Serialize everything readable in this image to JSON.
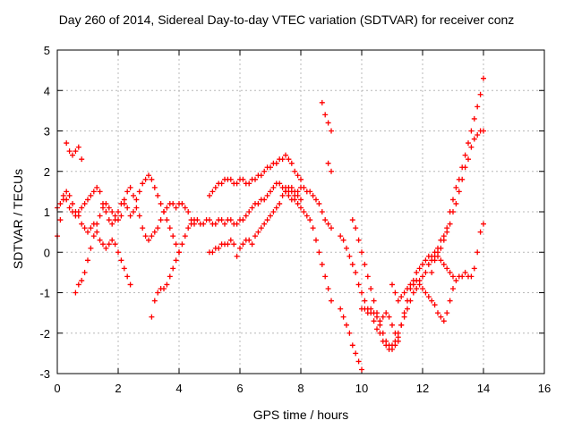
{
  "chart_data": {
    "type": "scatter",
    "title": "Day 260 of 2014, Sidereal Day-to-day VTEC variation (SDTVAR) for receiver conz",
    "xlabel": "GPS time / hours",
    "ylabel": "SDTVAR / TECUs",
    "xlim": [
      0,
      16
    ],
    "ylim": [
      -3,
      5
    ],
    "xticks": [
      0,
      2,
      4,
      6,
      8,
      10,
      12,
      14,
      16
    ],
    "yticks": [
      -3,
      -2,
      -1,
      0,
      1,
      2,
      3,
      4,
      5
    ],
    "grid": true,
    "marker": "plus",
    "color": "#ff0000",
    "series": [
      {
        "x": [
          0.0,
          0.1,
          0.2,
          0.3,
          0.4,
          0.5,
          0.6,
          0.7,
          0.8,
          0.9,
          1.0,
          1.1,
          1.2,
          1.3,
          1.4,
          1.5,
          1.6,
          1.7,
          1.8,
          1.9,
          2.0,
          2.1,
          2.2,
          2.3,
          2.4
        ],
        "y": [
          0.4,
          0.8,
          1.3,
          1.5,
          1.4,
          1.2,
          1.0,
          0.9,
          0.7,
          0.6,
          0.5,
          0.6,
          0.7,
          0.5,
          0.3,
          0.2,
          0.1,
          0.2,
          0.3,
          0.2,
          0.0,
          -0.2,
          -0.4,
          -0.6,
          -0.8
        ]
      },
      {
        "x": [
          0.3,
          0.4,
          0.5,
          0.6,
          0.7,
          0.8
        ],
        "y": [
          2.7,
          2.5,
          2.4,
          2.5,
          2.6,
          2.3
        ]
      },
      {
        "x": [
          0.6,
          0.7,
          0.8,
          0.9,
          1.0,
          1.1,
          1.2,
          1.3,
          1.4,
          1.5,
          1.6,
          1.7,
          1.8,
          1.9,
          2.0,
          2.1,
          2.2,
          2.3,
          2.4,
          2.5,
          2.6,
          2.7,
          2.8,
          2.9,
          3.0,
          3.1,
          3.2,
          3.3,
          3.4,
          3.5,
          3.6,
          3.7,
          3.8,
          3.9,
          4.0,
          4.1,
          4.2,
          4.3,
          4.4,
          4.5
        ],
        "y": [
          -1.0,
          -0.8,
          -0.7,
          -0.5,
          -0.2,
          0.1,
          0.4,
          0.7,
          0.9,
          1.1,
          1.2,
          1.1,
          1.0,
          0.9,
          0.8,
          0.9,
          1.2,
          1.5,
          1.6,
          1.4,
          1.1,
          0.9,
          0.6,
          0.4,
          0.3,
          0.4,
          0.5,
          0.6,
          0.8,
          1.0,
          1.1,
          1.2,
          1.2,
          1.1,
          1.2,
          1.2,
          1.1,
          1.0,
          0.8,
          0.7
        ]
      },
      {
        "x": [
          0.0,
          0.1,
          0.2,
          0.3,
          0.4,
          0.5,
          0.6,
          0.7,
          0.8,
          0.9,
          1.0,
          1.1,
          1.2,
          1.3,
          1.4,
          1.5,
          1.6,
          1.7,
          1.8,
          1.9,
          2.0,
          2.1,
          2.2,
          2.3,
          2.4,
          2.5,
          2.6,
          2.7,
          2.8,
          2.9,
          3.0,
          3.1,
          3.2,
          3.3,
          3.4,
          3.5,
          3.6,
          3.7,
          3.8,
          3.9,
          4.0
        ],
        "y": [
          1.1,
          1.2,
          1.4,
          1.3,
          1.1,
          1.0,
          0.9,
          1.0,
          1.1,
          1.2,
          1.3,
          1.4,
          1.5,
          1.6,
          1.5,
          1.2,
          1.0,
          0.8,
          0.7,
          0.8,
          1.0,
          1.2,
          1.3,
          1.1,
          0.9,
          1.0,
          1.3,
          1.5,
          1.7,
          1.8,
          1.9,
          1.8,
          1.6,
          1.4,
          1.2,
          1.0,
          0.8,
          0.6,
          0.4,
          0.2,
          0.0
        ]
      },
      {
        "x": [
          3.1,
          3.2,
          3.3,
          3.4,
          3.5,
          3.6,
          3.7,
          3.8,
          3.9,
          4.0,
          4.1,
          4.2,
          4.3,
          4.4,
          4.5,
          4.6,
          4.7,
          4.8,
          4.9,
          5.0,
          5.1,
          5.2,
          5.3,
          5.4,
          5.5,
          5.6,
          5.7,
          5.8,
          5.9,
          6.0,
          6.1,
          6.2,
          6.3,
          6.4,
          6.5,
          6.6,
          6.7,
          6.8,
          6.9,
          7.0,
          7.1,
          7.2,
          7.3,
          7.4,
          7.5,
          7.6,
          7.7,
          7.8,
          7.9,
          8.0
        ],
        "y": [
          -1.6,
          -1.2,
          -1.0,
          -0.9,
          -0.9,
          -0.8,
          -0.6,
          -0.4,
          -0.2,
          0.0,
          0.2,
          0.4,
          0.6,
          0.7,
          0.8,
          0.8,
          0.7,
          0.7,
          0.8,
          0.8,
          0.7,
          0.7,
          0.8,
          0.8,
          0.7,
          0.8,
          0.8,
          0.7,
          0.7,
          0.8,
          0.8,
          0.9,
          1.0,
          1.1,
          1.2,
          1.2,
          1.3,
          1.3,
          1.4,
          1.5,
          1.6,
          1.7,
          1.7,
          1.6,
          1.6,
          1.5,
          1.5,
          1.4,
          1.4,
          1.3
        ]
      },
      {
        "x": [
          5.0,
          5.1,
          5.2,
          5.3,
          5.4,
          5.5,
          5.6,
          5.7,
          5.8,
          5.9,
          6.0,
          6.1,
          6.2,
          6.3,
          6.4,
          6.5,
          6.6,
          6.7,
          6.8,
          6.9,
          7.0,
          7.1,
          7.2,
          7.3,
          7.4,
          7.5,
          7.6,
          7.7,
          7.8,
          7.9,
          8.0
        ],
        "y": [
          1.4,
          1.5,
          1.6,
          1.7,
          1.7,
          1.8,
          1.8,
          1.8,
          1.7,
          1.7,
          1.8,
          1.8,
          1.7,
          1.7,
          1.8,
          1.8,
          1.9,
          1.9,
          2.0,
          2.1,
          2.1,
          2.2,
          2.2,
          2.3,
          2.3,
          2.4,
          2.3,
          2.2,
          2.0,
          1.9,
          1.8
        ]
      },
      {
        "x": [
          5.0,
          5.1,
          5.2,
          5.3,
          5.4,
          5.5,
          5.6,
          5.7,
          5.8,
          5.9,
          6.0,
          6.1,
          6.2,
          6.3,
          6.4,
          6.5,
          6.6,
          6.7,
          6.8,
          6.9,
          7.0,
          7.1,
          7.2,
          7.3,
          7.4,
          7.5,
          7.6,
          7.7,
          7.8,
          7.9,
          8.0,
          8.1,
          8.2,
          8.3,
          8.4,
          8.5,
          8.6,
          8.7,
          8.8,
          8.9,
          9.0
        ],
        "y": [
          0.0,
          0.0,
          0.1,
          0.1,
          0.2,
          0.2,
          0.2,
          0.3,
          0.2,
          -0.1,
          0.1,
          0.2,
          0.3,
          0.3,
          0.2,
          0.4,
          0.5,
          0.6,
          0.7,
          0.8,
          0.9,
          1.0,
          1.1,
          1.2,
          1.4,
          1.5,
          1.6,
          1.6,
          1.5,
          1.5,
          1.6,
          1.6,
          1.5,
          1.5,
          1.4,
          1.3,
          1.2,
          1.0,
          0.8,
          0.7,
          0.6
        ]
      },
      {
        "x": [
          7.5,
          7.6,
          7.7,
          7.8,
          7.9,
          8.0,
          8.1,
          8.2,
          8.3,
          8.4,
          8.5,
          8.6,
          8.7,
          8.8,
          8.9,
          9.0
        ],
        "y": [
          1.5,
          1.4,
          1.3,
          1.3,
          1.2,
          1.1,
          1.0,
          0.9,
          0.8,
          0.6,
          0.3,
          0.0,
          -0.3,
          -0.6,
          -0.9,
          -1.2
        ]
      },
      {
        "x": [
          8.7,
          8.8,
          8.9,
          9.0
        ],
        "y": [
          3.7,
          3.4,
          3.2,
          3.0
        ]
      },
      {
        "x": [
          8.9,
          9.0
        ],
        "y": [
          2.2,
          2.0
        ]
      },
      {
        "x": [
          9.3,
          9.4,
          9.5,
          9.6,
          9.7,
          9.8,
          9.9,
          10.0,
          10.1,
          10.2,
          10.3,
          10.4,
          10.5,
          10.6,
          10.7,
          10.8,
          10.9,
          11.0,
          11.1,
          11.2,
          11.3,
          11.4,
          11.5,
          11.6,
          11.7,
          11.8,
          11.9,
          12.0,
          12.1,
          12.2,
          12.3,
          12.4,
          12.5,
          12.6,
          12.7,
          12.8,
          12.9,
          13.0
        ],
        "y": [
          0.4,
          0.3,
          0.1,
          -0.1,
          -0.3,
          -0.5,
          -0.8,
          -1.0,
          -1.2,
          -1.4,
          -1.5,
          -1.7,
          -1.9,
          -2.0,
          -2.2,
          -2.3,
          -2.4,
          -2.3,
          -2.2,
          -2.0,
          -1.8,
          -1.6,
          -1.4,
          -1.2,
          -1.0,
          -0.9,
          -0.7,
          -0.6,
          -0.5,
          -0.3,
          -0.1,
          0.0,
          -0.1,
          -0.2,
          -0.3,
          -0.4,
          -0.5,
          -0.6
        ]
      },
      {
        "x": [
          9.3,
          9.4,
          9.5,
          9.6,
          9.7,
          9.8,
          9.9,
          10.0
        ],
        "y": [
          -1.4,
          -1.6,
          -1.8,
          -2.0,
          -2.3,
          -2.5,
          -2.7,
          -2.9
        ]
      },
      {
        "x": [
          9.7,
          9.8,
          9.9,
          10.0,
          10.1,
          10.2,
          10.3,
          10.4,
          10.5,
          10.6,
          10.7,
          10.8,
          10.9,
          11.0,
          11.1,
          11.2,
          11.3,
          11.4,
          11.5,
          11.6,
          11.7,
          11.8,
          11.9,
          12.0,
          12.1,
          12.2,
          12.3,
          12.4,
          12.5,
          12.6,
          12.7,
          12.8,
          12.9,
          13.0,
          13.1,
          13.2,
          13.3,
          13.4,
          13.5,
          13.6,
          13.7,
          13.8,
          13.9,
          14.0
        ],
        "y": [
          0.8,
          0.6,
          0.3,
          0.0,
          -0.3,
          -0.6,
          -0.9,
          -1.2,
          -1.5,
          -1.8,
          -2.0,
          -2.2,
          -2.3,
          -2.4,
          -2.3,
          -2.1,
          -1.8,
          -1.5,
          -1.2,
          -0.9,
          -0.7,
          -0.5,
          -0.4,
          -0.3,
          -0.2,
          -0.1,
          -0.2,
          -0.1,
          0.0,
          0.1,
          0.3,
          0.6,
          1.0,
          1.3,
          1.6,
          1.8,
          2.1,
          2.4,
          2.7,
          3.0,
          3.3,
          3.6,
          3.9,
          4.3
        ]
      },
      {
        "x": [
          10.0,
          10.1,
          10.2,
          10.3,
          10.4,
          10.5,
          10.6,
          10.7,
          10.8,
          10.9,
          11.0,
          11.1,
          11.2
        ],
        "y": [
          -1.4,
          -1.4,
          -1.5,
          -1.4,
          -1.5,
          -1.6,
          -1.7,
          -1.6,
          -1.5,
          -1.6,
          -1.8,
          -2.0,
          -2.2
        ]
      },
      {
        "x": [
          11.0,
          11.1,
          11.2,
          11.3,
          11.4,
          11.5,
          11.6,
          11.7,
          11.8,
          11.9,
          12.0,
          12.1,
          12.2,
          12.3,
          12.4,
          12.5,
          12.6,
          12.7,
          12.8,
          12.9,
          13.0,
          13.1,
          13.2,
          13.3,
          13.4,
          13.5,
          13.6,
          13.7,
          13.8,
          13.9,
          14.0
        ],
        "y": [
          -0.8,
          -1.0,
          -1.2,
          -1.1,
          -1.0,
          -0.9,
          -0.8,
          -0.8,
          -0.7,
          -0.8,
          -0.9,
          -1.0,
          -1.1,
          -1.2,
          -1.3,
          -1.5,
          -1.6,
          -1.7,
          -1.5,
          -1.2,
          -0.9,
          -0.7,
          -0.6,
          -0.6,
          -0.5,
          -0.6,
          -0.6,
          -0.4,
          0.0,
          0.5,
          0.7
        ]
      },
      {
        "x": [
          12.3,
          12.4,
          12.5,
          12.6,
          12.7,
          12.8,
          12.9,
          13.0,
          13.1,
          13.2,
          13.3,
          13.4,
          13.5,
          13.6,
          13.7,
          13.8,
          13.9,
          14.0
        ],
        "y": [
          -0.5,
          -0.2,
          0.1,
          0.3,
          0.4,
          0.5,
          0.7,
          1.0,
          1.2,
          1.5,
          1.8,
          2.1,
          2.3,
          2.6,
          2.8,
          2.9,
          3.0,
          3.0
        ]
      }
    ]
  }
}
